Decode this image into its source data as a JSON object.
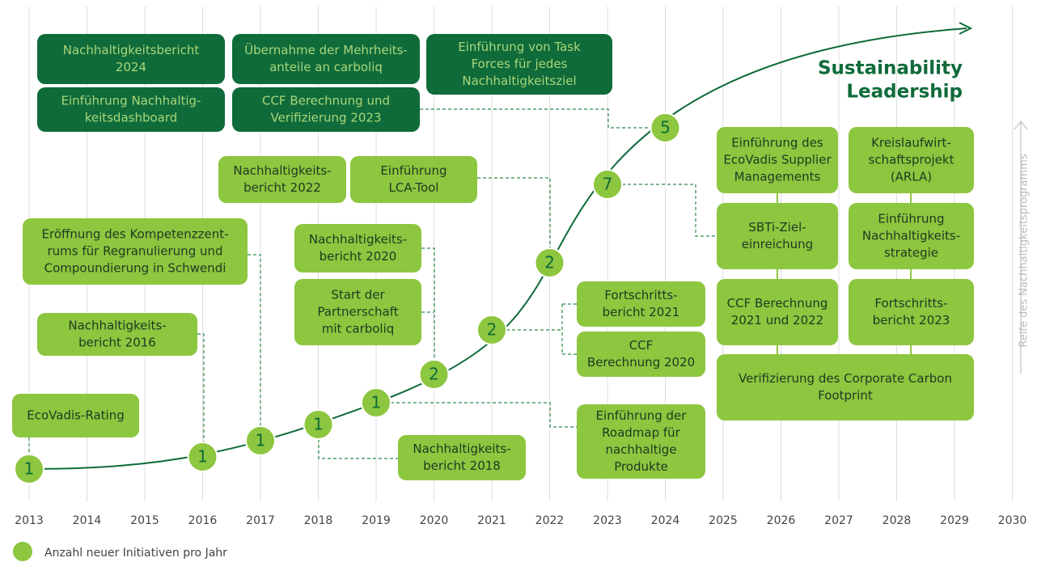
{
  "title_lines": [
    "Sustainability",
    "Leadership"
  ],
  "axis_label": "Reife des Nachhaltigkeitsprogramms",
  "legend": "Anzahl neuer Initiativen pro Jahr",
  "years": [
    "2013",
    "2014",
    "2015",
    "2016",
    "2017",
    "2018",
    "2019",
    "2020",
    "2021",
    "2022",
    "2023",
    "2024",
    "2025",
    "2026",
    "2027",
    "2028",
    "2029",
    "2030"
  ],
  "nodes": [
    {
      "year": "2013",
      "label": "1"
    },
    {
      "year": "2016",
      "label": "1"
    },
    {
      "year": "2017",
      "label": "1"
    },
    {
      "year": "2018",
      "label": "1"
    },
    {
      "year": "2019",
      "label": "1"
    },
    {
      "year": "2020",
      "label": "2"
    },
    {
      "year": "2021",
      "label": "2"
    },
    {
      "year": "2022",
      "label": "2"
    },
    {
      "year": "2023",
      "label": "7"
    },
    {
      "year": "2024",
      "label": "5"
    }
  ],
  "boxes": [
    {
      "lines": [
        "EcoVadis-Rating"
      ]
    },
    {
      "lines": [
        "Nachhaltigkeits-",
        "bericht 2016"
      ]
    },
    {
      "lines": [
        "Eröffnung des Kompetenzzent-",
        "rums für Regranulierung und",
        "Compoundierung in Schwendi"
      ]
    },
    {
      "lines": [
        "Nachhaltigkeits-",
        "bericht 2018"
      ]
    },
    {
      "lines": [
        "Nachhaltigkeits-",
        "bericht 2020"
      ]
    },
    {
      "lines": [
        "Start der",
        "Partnerschaft",
        "mit carboliq"
      ]
    },
    {
      "lines": [
        "Nachhaltigkeits-",
        "bericht 2022"
      ]
    },
    {
      "lines": [
        "Einführung",
        "LCA-Tool"
      ]
    },
    {
      "lines": [
        "Fortschritts-",
        "bericht 2021"
      ]
    },
    {
      "lines": [
        "CCF",
        "Berechnung 2020"
      ]
    },
    {
      "lines": [
        "Einführung der",
        "Roadmap für",
        "nachhaltige",
        "Produkte"
      ]
    },
    {
      "lines": [
        "Nachhaltigkeitsbericht",
        "2024"
      ],
      "dark": true
    },
    {
      "lines": [
        "Übernahme der Mehrheits-",
        "anteile an carboliq"
      ],
      "dark": true
    },
    {
      "lines": [
        "Einführung von Task",
        "Forces für jedes",
        "Nachhaltigkeitsziel"
      ],
      "dark": true
    },
    {
      "lines": [
        "Einführung Nachhaltig-",
        "keitsdashboard"
      ],
      "dark": true
    },
    {
      "lines": [
        "CCF Berechnung und",
        "Verifizierung 2023"
      ],
      "dark": true
    },
    {
      "lines": [
        "Einführung des",
        "EcoVadis Supplier",
        "Managements"
      ]
    },
    {
      "lines": [
        "Kreislaufwirt-",
        "schaftsprojekt",
        "(ARLA)"
      ]
    },
    {
      "lines": [
        "SBTi-Ziel-",
        "einreichung"
      ]
    },
    {
      "lines": [
        "Einführung",
        "Nachhaltigkeits-",
        "strategie"
      ]
    },
    {
      "lines": [
        "CCF Berechnung",
        "2021 und 2022"
      ]
    },
    {
      "lines": [
        "Fortschritts-",
        "bericht 2023"
      ]
    },
    {
      "lines": [
        "Verifizierung des Corporate Carbon",
        "Footprint"
      ]
    }
  ]
}
